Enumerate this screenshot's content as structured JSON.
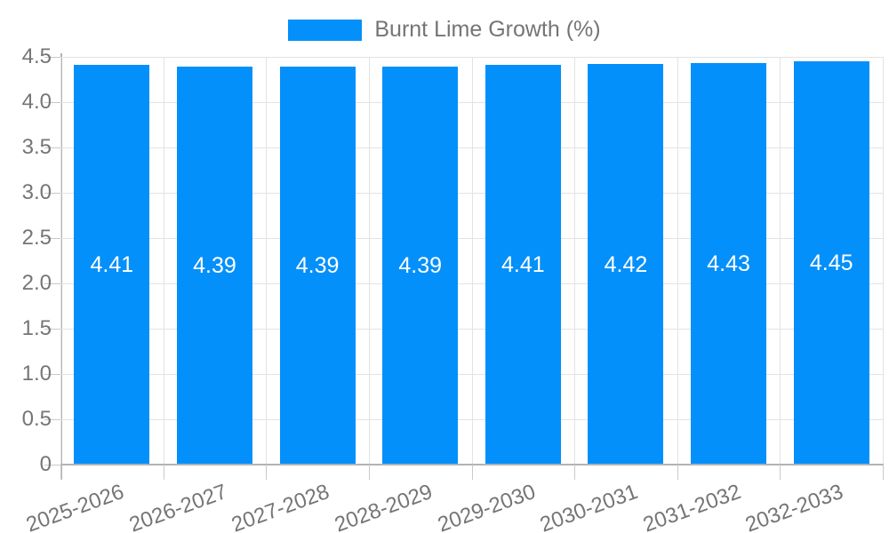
{
  "colors": {
    "bar": "#0490fa",
    "grid_line": "#e3e3e3",
    "tick_line": "#c9c9c9",
    "axis_line": "#b3b3b3",
    "axis_label_text": "#757575",
    "value_label_text": "#ffffff",
    "background": "#ffffff"
  },
  "chart_data": {
    "type": "bar",
    "title": "Burnt Lime Growth (%)",
    "legend_position": "top",
    "grid": true,
    "xlabel": "",
    "ylabel": "",
    "categories": [
      "2025-2026",
      "2026-2027",
      "2027-2028",
      "2028-2029",
      "2029-2030",
      "2030-2031",
      "2031-2032",
      "2032-2033"
    ],
    "values": [
      4.41,
      4.39,
      4.39,
      4.39,
      4.41,
      4.42,
      4.43,
      4.45
    ],
    "value_labels": [
      "4.41",
      "4.39",
      "4.39",
      "4.39",
      "4.41",
      "4.42",
      "4.43",
      "4.45"
    ],
    "ylim": [
      0,
      4.5
    ],
    "yticks": [
      {
        "value": 0,
        "label": "0"
      },
      {
        "value": 0.5,
        "label": "0.5"
      },
      {
        "value": 1,
        "label": "1.0"
      },
      {
        "value": 1.5,
        "label": "1.5"
      },
      {
        "value": 2,
        "label": "2.0"
      },
      {
        "value": 2.5,
        "label": "2.5"
      },
      {
        "value": 3,
        "label": "3.0"
      },
      {
        "value": 3.5,
        "label": "3.5"
      },
      {
        "value": 4,
        "label": "4.0"
      },
      {
        "value": 4.5,
        "label": "4.5"
      }
    ]
  }
}
